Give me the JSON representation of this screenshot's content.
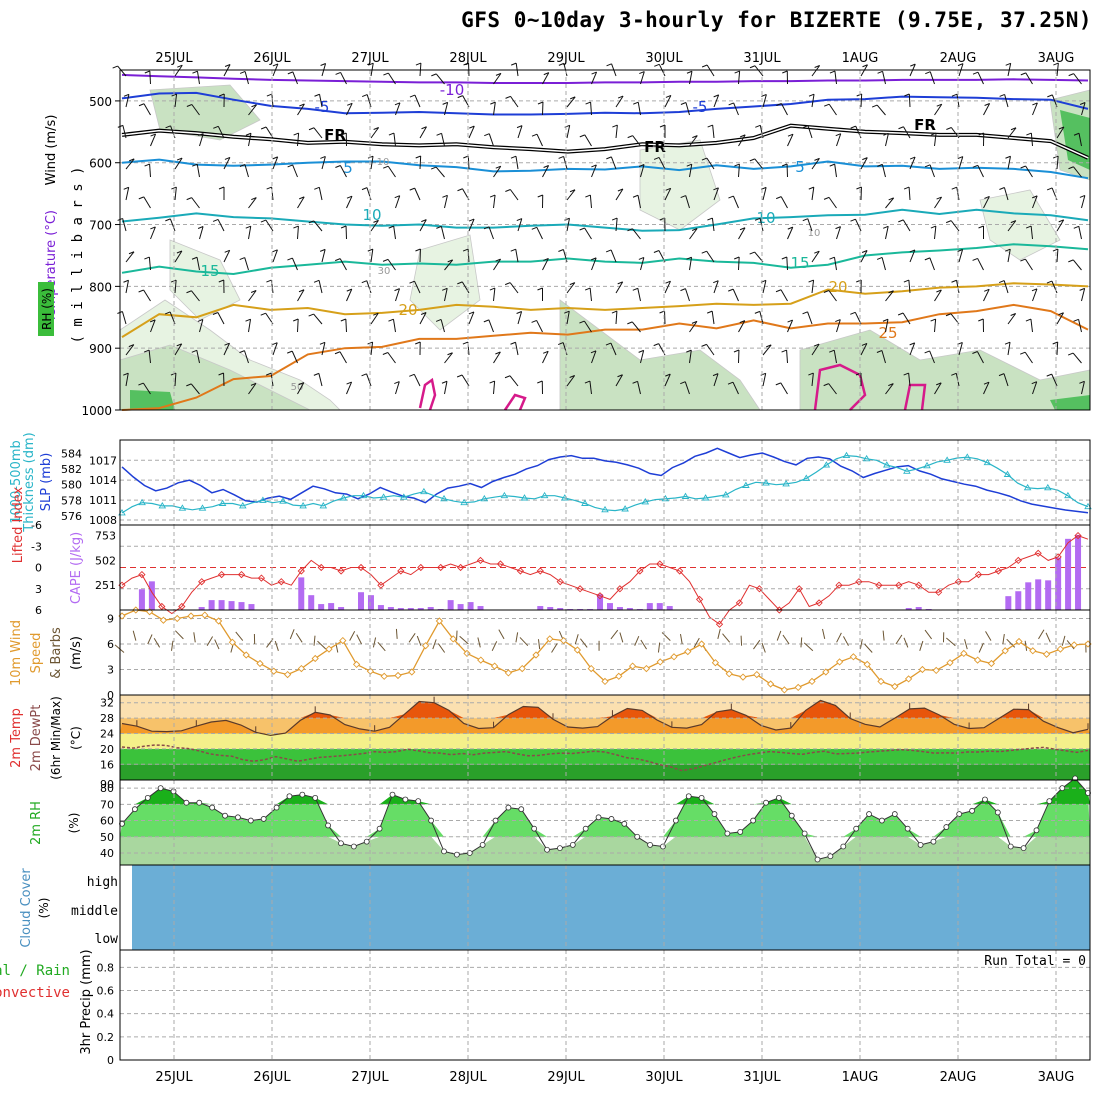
{
  "title": "GFS 0~10day 3-hourly for BIZERTE (9.75E, 37.25N)",
  "colors": {
    "grid": "#aaaaaa",
    "slp": "#1e3ed6",
    "thickness": "#2ab5c8",
    "lifted": "#e03030",
    "cape": "#b36bf2",
    "wind_speed": "#e09a2e",
    "barb": "#6b5533",
    "temp_fill": "#f39a2a",
    "temp_dark": "#e8560b",
    "dew_line": "#8a4a4a",
    "rh_fill": "#22cc22",
    "rh_light": "#a9d79f",
    "cloud": "#6baed6",
    "rh_upper_light": "#e7f3e2",
    "rh_upper_mid": "#c9e2c2"
  },
  "chart_data": [
    {
      "type": "line",
      "panel": "upper-air cross section",
      "x_dates": [
        "25JUL",
        "26JUL",
        "27JUL",
        "28JUL",
        "29JUL",
        "30JUL",
        "31JUL",
        "1AUG",
        "2AUG",
        "3AUG"
      ],
      "ylabel_parts": [
        "Wind (m/s)",
        "Temperature (°C)",
        "RH (%)",
        "( m i l l i b a r s )"
      ],
      "y_ticks": [
        500,
        600,
        700,
        800,
        900,
        1000
      ],
      "ylim": [
        450,
        1000
      ],
      "isotherms": [
        {
          "name": "-10",
          "color": "#7a1fd6",
          "values": [
            458,
            460,
            462,
            464,
            466,
            467,
            468,
            469,
            470,
            470,
            471,
            471,
            471,
            470,
            470,
            469,
            469,
            468,
            468,
            467,
            467,
            466,
            466,
            466,
            465,
            466,
            467
          ]
        },
        {
          "name": "-5",
          "color": "#1e3ed6",
          "values": [
            496,
            488,
            487,
            498,
            508,
            513,
            520,
            519,
            518,
            520,
            522,
            522,
            521,
            519,
            520,
            518,
            513,
            509,
            505,
            498,
            497,
            493,
            494,
            495,
            497,
            498,
            513
          ]
        },
        {
          "name": "FR",
          "color": "#000000",
          "values": [
            555,
            548,
            552,
            558,
            562,
            568,
            566,
            570,
            572,
            570,
            575,
            578,
            582,
            578,
            570,
            572,
            568,
            560,
            540,
            545,
            550,
            552,
            555,
            555,
            560,
            565,
            592
          ]
        },
        {
          "name": "5",
          "color": "#1a8fd6",
          "values": [
            600,
            595,
            603,
            605,
            603,
            600,
            598,
            598,
            604,
            607,
            614,
            613,
            610,
            611,
            606,
            612,
            604,
            610,
            606,
            598,
            606,
            605,
            610,
            608,
            610,
            615,
            625
          ]
        },
        {
          "name": "10",
          "color": "#1aaab8",
          "values": [
            695,
            689,
            682,
            688,
            690,
            695,
            700,
            702,
            700,
            705,
            705,
            702,
            700,
            705,
            710,
            709,
            700,
            690,
            688,
            685,
            684,
            676,
            683,
            676,
            682,
            685,
            693
          ]
        },
        {
          "name": "15",
          "color": "#1ab89a",
          "values": [
            778,
            768,
            776,
            780,
            770,
            765,
            760,
            765,
            763,
            765,
            760,
            760,
            755,
            760,
            762,
            755,
            760,
            762,
            770,
            765,
            750,
            745,
            742,
            738,
            732,
            735,
            740
          ]
        },
        {
          "name": "20",
          "color": "#d6a01a",
          "values": [
            882,
            845,
            850,
            830,
            838,
            835,
            845,
            843,
            838,
            830,
            833,
            838,
            835,
            838,
            835,
            832,
            828,
            830,
            828,
            805,
            812,
            808,
            802,
            800,
            795,
            797,
            800
          ]
        },
        {
          "name": "25",
          "color": "#e0781a",
          "values": [
            1000,
            997,
            980,
            950,
            945,
            910,
            900,
            898,
            885,
            885,
            880,
            875,
            878,
            870,
            870,
            860,
            868,
            855,
            868,
            860,
            860,
            858,
            845,
            840,
            830,
            840,
            870
          ]
        }
      ],
      "labels": [
        "-10",
        "-5",
        "-5",
        "FR",
        "FR",
        "FR",
        "5",
        "5",
        "10",
        "10",
        "15",
        "15",
        "20",
        "20",
        "25",
        "10",
        "10",
        "30",
        "50"
      ]
    },
    {
      "type": "line",
      "panel": "SLP and thickness",
      "ylabel_parts": [
        "1000-500mb",
        "Thickness (dm)",
        "SLP (mb)"
      ],
      "left_ticks": [
        576,
        578,
        580,
        582,
        584
      ],
      "right_ticks": [
        1008,
        1011,
        1014,
        1017
      ],
      "series": [
        {
          "name": "SLP (mb)",
          "axis": "right",
          "values": [
            1016,
            1014.5,
            1013.2,
            1012.4,
            1012.8,
            1013.6,
            1014,
            1013.2,
            1012.1,
            1012.6,
            1011.8,
            1010.9,
            1010.7,
            1011.3,
            1011.6,
            1011.1,
            1012.1,
            1013.1,
            1012.7,
            1012.1,
            1011.9,
            1011.2,
            1011.9,
            1012.9,
            1012.2,
            1011.6,
            1011.3,
            1010.6,
            1011.9,
            1012.8,
            1013.1,
            1013.5,
            1012.9,
            1013.8,
            1014.4,
            1014.9,
            1015.7,
            1016.2,
            1017.1,
            1017.5,
            1017.7,
            1017.3,
            1017.3,
            1016.9,
            1016.7,
            1016.3,
            1015.8,
            1015,
            1014.7,
            1015.9,
            1016.6,
            1017.6,
            1018.1,
            1018.8,
            1018.1,
            1017.4,
            1017.8,
            1018.1,
            1017.5,
            1016.8,
            1016.3,
            1017.3,
            1017.5,
            1017.2,
            1016.1,
            1015.4,
            1014.4,
            1015,
            1015.5,
            1016,
            1016.2,
            1015.4,
            1014.9,
            1014.2,
            1013.8,
            1013.4,
            1013.1,
            1012.5,
            1012.1,
            1011.6,
            1010.9,
            1010.4,
            1010.1,
            1009.8,
            1009.5,
            1009.3,
            1009.1
          ]
        },
        {
          "name": "1000-500mb Thickness (dm)",
          "axis": "left",
          "values": [
            576.4,
            577.2,
            577.7,
            577.6,
            577.3,
            577.3,
            577,
            576.8,
            577,
            577.2,
            577.6,
            577.6,
            577.3,
            577.7,
            578,
            577.7,
            577.9,
            577.4,
            577.3,
            577.6,
            577.3,
            577.9,
            578.3,
            578.6,
            578.6,
            578.3,
            578.4,
            578.6,
            578.4,
            578.8,
            579.1,
            578.6,
            578.2,
            577.9,
            577.7,
            577.8,
            578.2,
            578.4,
            578.6,
            578.5,
            578.3,
            578.2,
            578.6,
            578.6,
            578.3,
            578,
            577.6,
            577.1,
            576.8,
            576.7,
            576.9,
            577.4,
            577.8,
            578.1,
            578.2,
            578.3,
            578.5,
            578.2,
            578.3,
            578.5,
            578.7,
            579.4,
            579.9,
            580.3,
            580.2,
            580,
            580.1,
            580.3,
            580.8,
            581.6,
            582.5,
            583.3,
            583.7,
            583.6,
            583.3,
            583.1,
            582.5,
            582.2,
            581.7,
            582,
            582.4,
            582.9,
            583.1,
            583.4,
            583.5,
            583.3,
            582.8,
            582.1,
            581.3,
            580.2,
            579.6,
            579.5,
            579.6,
            579.3,
            578.6,
            577.7,
            577.2
          ]
        }
      ]
    },
    {
      "type": "bar",
      "panel": "Lifted index and CAPE",
      "ylabel_parts": [
        "Lifted Index",
        "CAPE (J/kg)"
      ],
      "left_ticks": [
        -6,
        -3,
        0,
        3,
        6
      ],
      "right_ticks": [
        251,
        502,
        753
      ],
      "series": [
        {
          "name": "Lifted Index",
          "values": [
            2.5,
            1.5,
            1,
            3.5,
            5.5,
            6.5,
            5.5,
            3.5,
            2,
            1.5,
            1,
            1,
            1,
            1.5,
            1.5,
            2.5,
            2,
            2.5,
            0.5,
            -1,
            0,
            0,
            0.5,
            0,
            0,
            1,
            2.5,
            1.5,
            0.5,
            1,
            0,
            0,
            0,
            -0.5,
            0,
            -0.5,
            -1,
            -0.5,
            -0.5,
            0,
            0.5,
            1,
            0.5,
            1,
            2,
            2.5,
            3,
            3.5,
            4,
            4.5,
            3,
            2,
            0.5,
            -0.5,
            -0.5,
            0,
            0.5,
            2,
            4.5,
            7,
            8,
            6,
            5,
            2.5,
            3,
            4.5,
            6,
            5,
            3,
            5.5,
            5,
            4,
            2.5,
            2.5,
            2,
            2,
            2.5,
            2.5,
            2.5,
            2,
            2.5,
            3.5,
            3.5,
            2.5,
            2,
            2,
            1,
            1,
            0.5,
            0,
            -1,
            -1.5,
            -2,
            -1,
            -1.5,
            -3.5,
            -4.5,
            -4
          ]
        },
        {
          "name": "CAPE (J/kg)",
          "values": [
            0,
            0,
            210,
            290,
            0,
            0,
            0,
            0,
            30,
            100,
            100,
            90,
            80,
            60,
            0,
            0,
            0,
            0,
            330,
            150,
            60,
            70,
            30,
            0,
            180,
            150,
            50,
            30,
            20,
            20,
            20,
            30,
            10,
            100,
            60,
            80,
            40,
            0,
            0,
            0,
            0,
            0,
            40,
            30,
            20,
            10,
            10,
            10,
            160,
            70,
            30,
            20,
            10,
            70,
            70,
            40,
            0,
            0,
            0,
            0,
            0,
            0,
            0,
            0,
            0,
            0,
            0,
            0,
            0,
            0,
            0,
            0,
            0,
            0,
            0,
            0,
            0,
            0,
            0,
            20,
            30,
            10,
            0,
            0,
            0,
            0,
            0,
            0,
            0,
            140,
            190,
            280,
            310,
            300,
            530,
            720,
            760,
            0
          ]
        }
      ]
    },
    {
      "type": "line",
      "panel": "10m wind",
      "ylabel_parts": [
        "10m Wind",
        "Speed",
        "& Barbs",
        "(m/s)"
      ],
      "y_ticks": [
        0,
        3,
        6,
        9
      ],
      "ylim": [
        0,
        10
      ],
      "values": [
        9.3,
        10,
        9.8,
        8.8,
        9.0,
        9.3,
        9.4,
        8.7,
        6.2,
        4.7,
        3.7,
        2.8,
        2.4,
        3.1,
        4.3,
        5.4,
        6.4,
        3.6,
        2.8,
        2.2,
        2.3,
        2.7,
        5.8,
        8.7,
        6.6,
        4.9,
        4.1,
        3.4,
        2.6,
        3.1,
        4.7,
        6.6,
        6.4,
        5.3,
        3.1,
        1.6,
        2.2,
        3.4,
        3.1,
        3.9,
        4.5,
        5.1,
        6.0,
        3.8,
        2.5,
        2.1,
        2.4,
        1.3,
        0.6,
        0.9,
        1.6,
        2.7,
        3.9,
        4.5,
        3.6,
        1.6,
        1.0,
        1.9,
        3.0,
        2.9,
        3.8,
        4.9,
        4.1,
        3.7,
        5.2,
        6.3,
        5.2,
        4.8,
        5.4,
        5.9,
        6.0
      ]
    },
    {
      "type": "area",
      "panel": "2m temperature",
      "ylabel_parts": [
        "2m Temp",
        "2m DewPt",
        "(6hr Min/Max)",
        "(°C)"
      ],
      "y_ticks": [
        90,
        16,
        20,
        24,
        28,
        32
      ],
      "series": [
        {
          "name": "2m Temp",
          "values": [
            26.6,
            25.9,
            24.6,
            24.5,
            24.7,
            25.9,
            27.0,
            27.4,
            26.2,
            24.3,
            23.5,
            24.1,
            27.4,
            29.5,
            28.8,
            26.3,
            25.2,
            24.6,
            25.6,
            29.0,
            32.3,
            32.0,
            30.0,
            26.6,
            25.3,
            25.5,
            28.9,
            31.0,
            30.8,
            27.7,
            25.7,
            25.4,
            25.8,
            28.5,
            30.5,
            30.0,
            27.5,
            25.6,
            25.4,
            26.3,
            29.6,
            30.2,
            28.7,
            26.1,
            24.9,
            25.4,
            30.0,
            32.6,
            31.3,
            27.9,
            26.4,
            25.7,
            28.0,
            30.4,
            30.6,
            28.8,
            26.4,
            25.3,
            25.5,
            27.9,
            30.3,
            30.2,
            27.2,
            25.5,
            24.2,
            25.1
          ]
        },
        {
          "name": "2m DewPt",
          "values": [
            20.5,
            20.2,
            20.7,
            21,
            20.9,
            20.3,
            20.1,
            19.5,
            18.7,
            18.3,
            18.1,
            17.2,
            16.8,
            17.2,
            18,
            17.4,
            16.8,
            17.3,
            17.8,
            18,
            18.2,
            18.5,
            18.8,
            19.3,
            19.1,
            19.3,
            19.9,
            19.5,
            19,
            18.9,
            18.5,
            18.8,
            18.5,
            18.9,
            19.1,
            19.3,
            18.7,
            18.2,
            18.3,
            18.7,
            18.9,
            18.8,
            19.1,
            19.4,
            19.2,
            18.5,
            17.7,
            17.4,
            16.7,
            15.9,
            15.3,
            14.4,
            14.8,
            15.6,
            16.4,
            17.2,
            17.9,
            18.5,
            18.9,
            19.3,
            19.1,
            18.8,
            18.6,
            19.1,
            19.4,
            18.7,
            18.8,
            18.9,
            19.2,
            19.4,
            19.6,
            19.8,
            19.6,
            19.3,
            18.9,
            19,
            18.9,
            19.2,
            19.2,
            19.4,
            19.3,
            19.6,
            19.9,
            20.2,
            20.4,
            19.9,
            19.5,
            19.1,
            19.6
          ]
        }
      ]
    },
    {
      "type": "area",
      "panel": "2m RH",
      "ylabel_parts": [
        "2m RH",
        "(%)"
      ],
      "y_ticks": [
        40,
        50,
        60,
        70,
        80
      ],
      "values": [
        58,
        67,
        74,
        80,
        78,
        71,
        71,
        68,
        63,
        62,
        60,
        61,
        68,
        75,
        76,
        74,
        57,
        46,
        44,
        47,
        55,
        76,
        73,
        72,
        60,
        41,
        39,
        40,
        45,
        60,
        68,
        67,
        55,
        42,
        43,
        45,
        55,
        62,
        61,
        58,
        50,
        45,
        44,
        60,
        75,
        74,
        64,
        52,
        53,
        60,
        71,
        74,
        63,
        52,
        36,
        38,
        44,
        55,
        64,
        60,
        64,
        55,
        45,
        47,
        56,
        64,
        66,
        73,
        65,
        44,
        43,
        54,
        72,
        80,
        86,
        77
      ]
    },
    {
      "type": "area",
      "panel": "cloud cover",
      "ylabel_parts": [
        "Cloud Cover",
        "(%)"
      ],
      "levels": [
        "high",
        "middle",
        "low"
      ]
    },
    {
      "type": "bar",
      "panel": "precipitation",
      "ylabel_parts": [
        "Total / Rain",
        "Convective",
        "3hr Precip (mm)"
      ],
      "y_ticks": [
        0,
        0.2,
        0.4,
        0.6,
        0.8
      ],
      "annotation": "Run Total = 0"
    }
  ]
}
